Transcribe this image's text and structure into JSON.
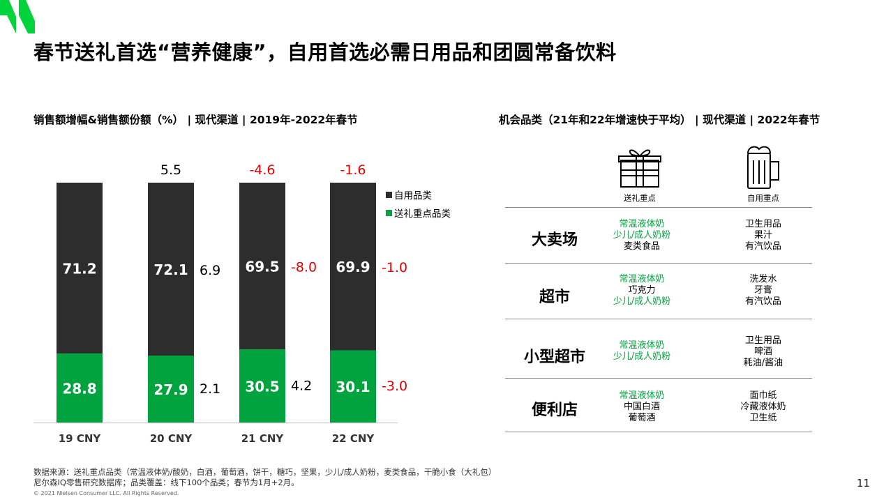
{
  "title": "春节送礼首选“营养健康”，自用首选必需日用品和团圆常备饮料",
  "left_subtitle": "销售额增幅&销售额份额（%） | 现代渠道 | 2019年-2022年春节",
  "right_subtitle": "机会品类（21年和22年增速快于平均） | 现代渠道 | 2022年春节",
  "colors": {
    "own_use": "#2d2d2d",
    "gift": "#00a33e",
    "negative": "#e00000",
    "brand_green": "#00d43a"
  },
  "chart_data": {
    "type": "bar",
    "stacked": true,
    "categories": [
      "19 CNY",
      "20 CNY",
      "21 CNY",
      "22 CNY"
    ],
    "series": [
      {
        "name": "自用品类",
        "values": [
          71.2,
          72.1,
          69.5,
          69.9
        ]
      },
      {
        "name": "送礼重点品类",
        "values": [
          28.8,
          27.9,
          30.5,
          30.1
        ]
      }
    ],
    "total_growth": [
      "",
      "5.5",
      "-4.6",
      "-1.6"
    ],
    "own_growth": [
      "",
      "6.9",
      "-8.0",
      "-1.0"
    ],
    "gift_growth": [
      "",
      "2.1",
      "4.2",
      "-3.0"
    ],
    "ylim": [
      0,
      100
    ],
    "legend_position": "right",
    "grid": false
  },
  "table": {
    "gift_label": "送礼重点",
    "own_label": "自用重点",
    "rows": [
      {
        "channel": "大卖场",
        "gift": [
          {
            "text": "常温液体奶",
            "color": "green"
          },
          {
            "text": "少儿/成人奶粉",
            "color": "green"
          },
          {
            "text": "麦类食品",
            "color": "black"
          }
        ],
        "own": [
          {
            "text": "卫生用品"
          },
          {
            "text": "果汁"
          },
          {
            "text": "有汽饮品"
          }
        ]
      },
      {
        "channel": "超市",
        "gift": [
          {
            "text": "常温液体奶",
            "color": "green"
          },
          {
            "text": "巧克力",
            "color": "black"
          },
          {
            "text": "少儿/成人奶粉",
            "color": "green"
          }
        ],
        "own": [
          {
            "text": "洗发水"
          },
          {
            "text": "牙膏"
          },
          {
            "text": "有汽饮品"
          }
        ]
      },
      {
        "channel": "小型超市",
        "gift": [
          {
            "text": "常温液体奶",
            "color": "green"
          },
          {
            "text": "少儿/成人奶粉",
            "color": "green"
          }
        ],
        "own": [
          {
            "text": "卫生用品"
          },
          {
            "text": "啤酒"
          },
          {
            "text": "耗油/酱油"
          }
        ]
      },
      {
        "channel": "便利店",
        "gift": [
          {
            "text": "常温液体奶",
            "color": "green"
          },
          {
            "text": "中国白酒",
            "color": "black"
          },
          {
            "text": "葡萄酒",
            "color": "black"
          }
        ],
        "own": [
          {
            "text": "面巾纸"
          },
          {
            "text": "冷藏液体奶"
          },
          {
            "text": "卫生纸"
          }
        ]
      }
    ]
  },
  "footnote_1": "数据来源：送礼重点品类（常温液体奶/酸奶，白酒，葡萄酒，饼干，糖巧，坚果，少儿/成人奶粉，麦类食品，干脆小食（大礼包）",
  "footnote_2": "尼尔森IQ零售研究数据库；品类覆盖：线下100个品类；春节为1月+2月。",
  "copyright": "© 2021 Nielsen Consumer LLC. All Rights Reserved.",
  "page_number": "11"
}
